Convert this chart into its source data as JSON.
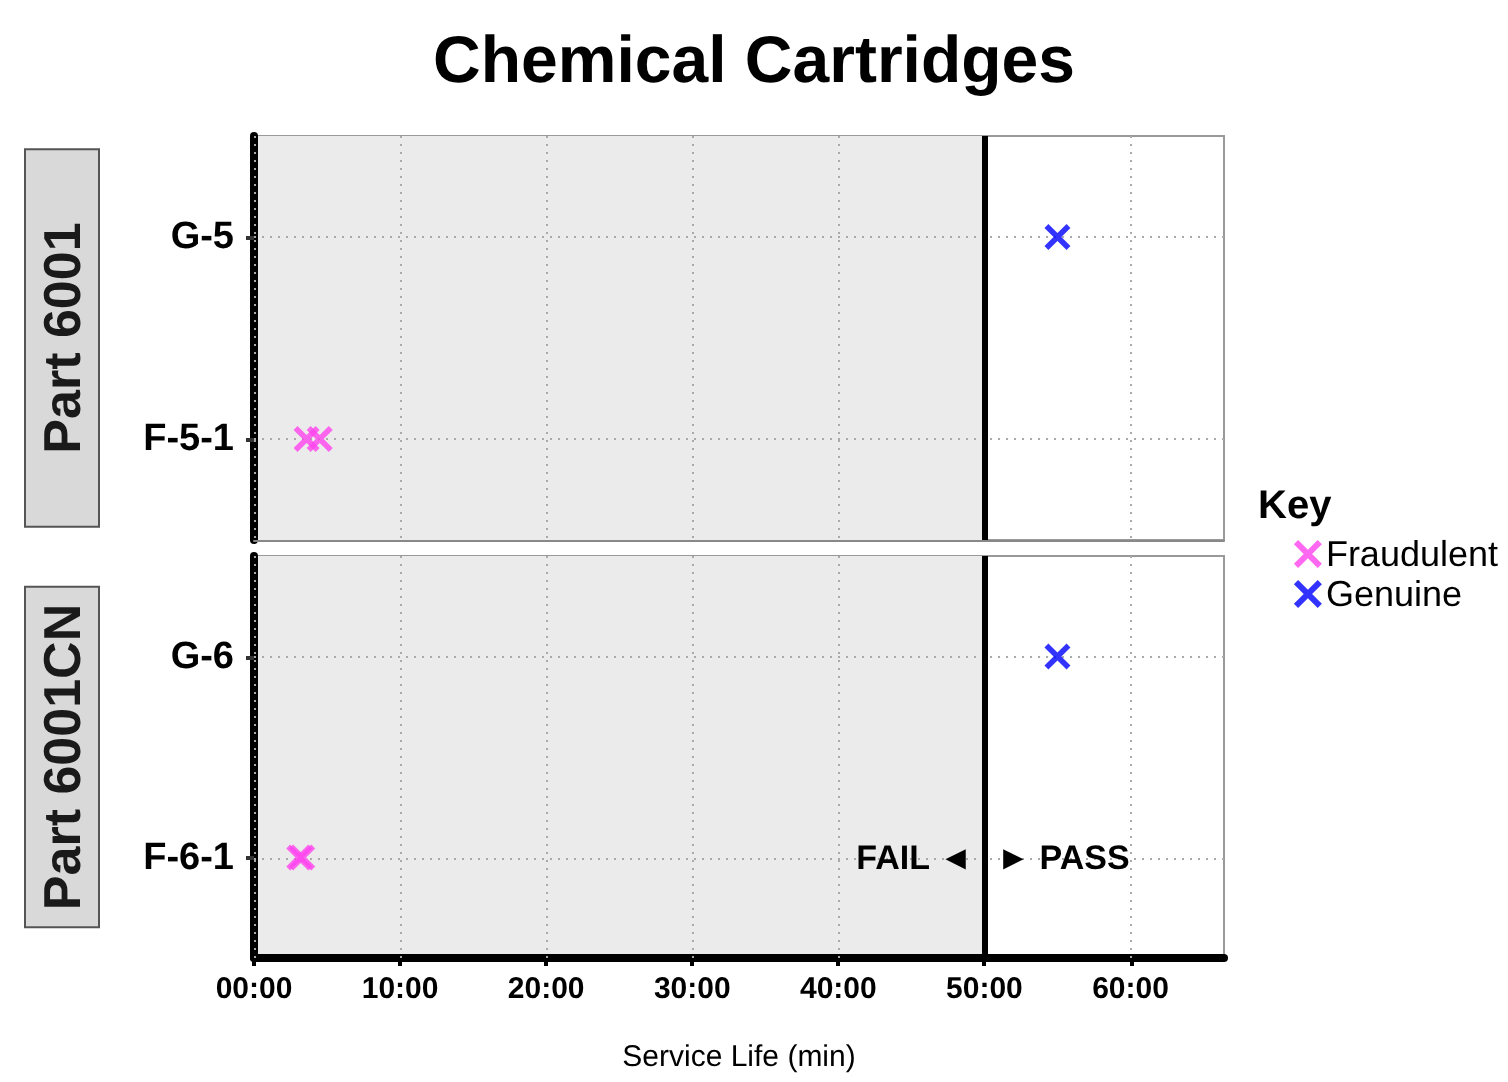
{
  "chart_data": [
    {
      "type": "scatter",
      "title": "Chemical Cartridges",
      "ylabel": "Part 6001",
      "orientation": "horizontal",
      "categories": [
        "G-5",
        "F-5-1"
      ],
      "series": [
        {
          "name": "Fraudulent",
          "color": "#ff44ee",
          "values": [
            null,
            3.6
          ]
        },
        {
          "color": "#ff44ee",
          "values": [
            null,
            4.5
          ]
        },
        {
          "name": "Genuine",
          "color": "#0000ff",
          "values": [
            55,
            null
          ]
        }
      ],
      "xlim": [
        0,
        66.4
      ],
      "xticks": [
        {
          "value": 0,
          "label": null
        },
        {
          "value": 10,
          "label": null
        },
        {
          "value": 20,
          "label": null
        },
        {
          "value": 30,
          "label": null
        },
        {
          "value": 40,
          "label": null
        },
        {
          "value": 50,
          "label": null
        },
        {
          "value": 60,
          "label": null
        }
      ],
      "tick_labels": "y",
      "grid": true,
      "marker": "cross",
      "legend": "right",
      "legend_title": "Key",
      "bands": [
        {
          "axis": "x",
          "from": 0,
          "to": 50,
          "color": "#ebebeb"
        }
      ],
      "ref_lines": [
        {
          "axis": "x",
          "value": 50,
          "color": "#000000"
        }
      ]
    },
    {
      "type": "scatter",
      "xlabel": "Service Life (min)",
      "ylabel": "Part 6001CN",
      "orientation": "horizontal",
      "categories": [
        "G-6",
        "F-6-1"
      ],
      "series": [
        {
          "color": "#ff44ee",
          "values": [
            null,
            3.1
          ]
        },
        {
          "color": "#ff44ee",
          "values": [
            null,
            3.3
          ]
        },
        {
          "color": "#0000ff",
          "values": [
            55,
            null
          ]
        }
      ],
      "xlim": [
        0,
        66.4
      ],
      "xticks": [
        {
          "value": 0,
          "label": "00:00"
        },
        {
          "value": 10,
          "label": "10:00"
        },
        {
          "value": 20,
          "label": "20:00"
        },
        {
          "value": 30,
          "label": "30:00"
        },
        {
          "value": 40,
          "label": "40:00"
        },
        {
          "value": 50,
          "label": "50:00"
        },
        {
          "value": 60,
          "label": "60:00"
        }
      ],
      "grid": true,
      "marker": "cross",
      "legend": false,
      "bands": [
        {
          "axis": "x",
          "from": 0,
          "to": 50,
          "color": "#ebebeb"
        }
      ],
      "ref_lines": [
        {
          "axis": "x",
          "value": 50,
          "color": "#000000"
        }
      ],
      "annotations": [
        {
          "text": "FAIL ◄",
          "x": 50,
          "y": "F-6-1"
        },
        {
          "text": "► PASS",
          "x": 50,
          "y": "F-6-1"
        }
      ]
    }
  ]
}
